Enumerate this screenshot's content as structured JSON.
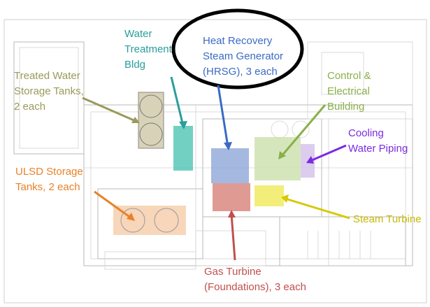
{
  "labels": [
    {
      "lines": [
        "Treated Water",
        "Storage Tanks,",
        "2 each"
      ]
    },
    {
      "lines": [
        "Water",
        "Treatment",
        "Bldg"
      ]
    },
    {
      "lines": [
        "Heat Recovery",
        "Steam Generator",
        "(HRSG), 3 each"
      ]
    },
    {
      "lines": [
        "Control &",
        "Electrical",
        "Building"
      ]
    },
    {
      "lines": [
        "Cooling",
        "Water Piping"
      ]
    },
    {
      "lines": [
        "ULSD Storage",
        "Tanks, 2 each"
      ]
    },
    {
      "lines": [
        "Steam Turbine"
      ]
    },
    {
      "lines": [
        "Gas Turbine",
        "(Foundations), 3 each"
      ]
    }
  ]
}
